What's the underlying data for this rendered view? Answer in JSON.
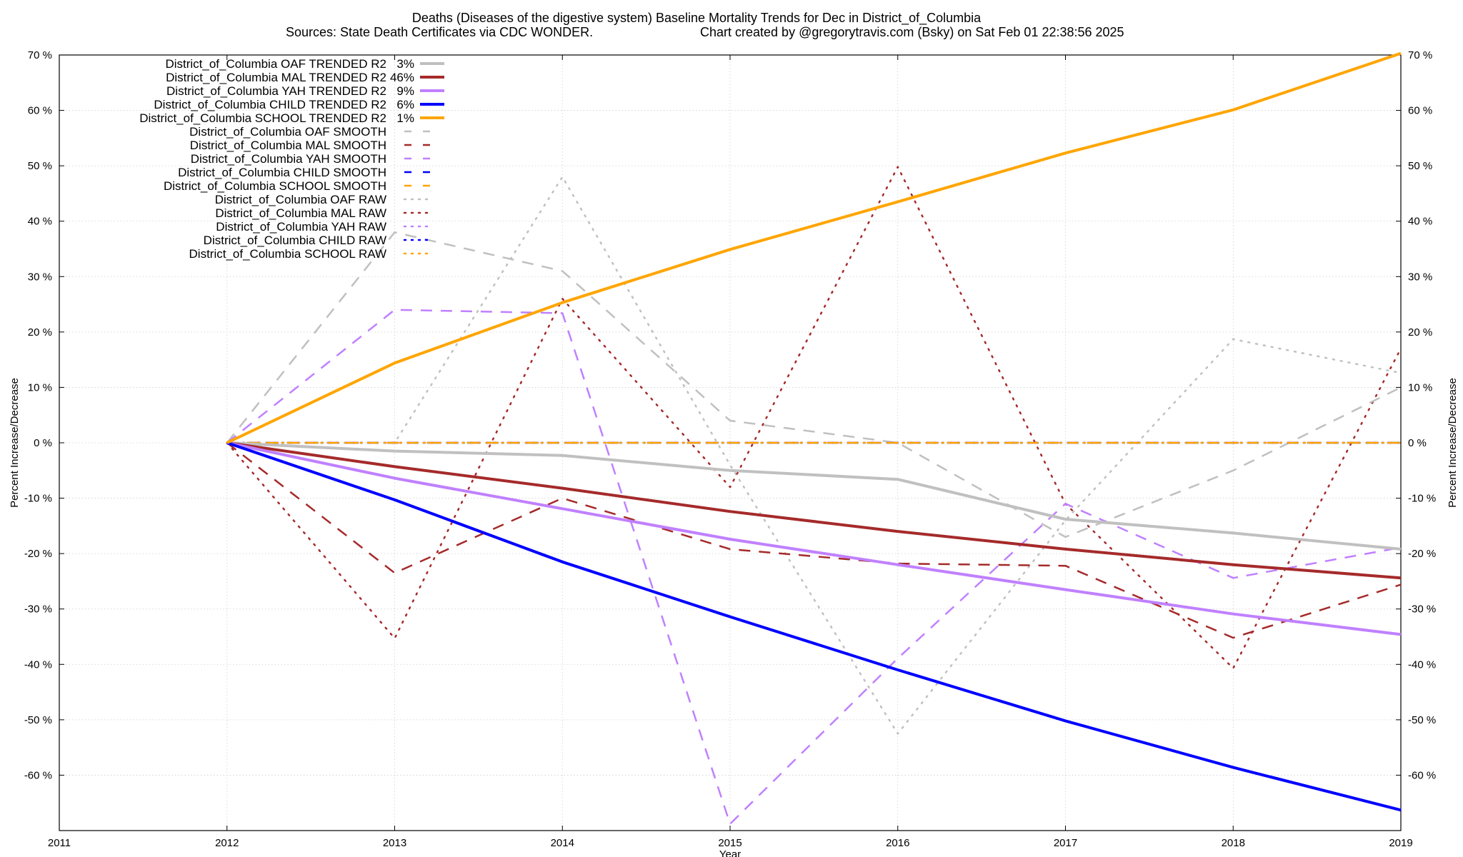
{
  "chart_data": {
    "type": "line",
    "title_line1": "Deaths (Diseases of the digestive system)  Baseline Mortality Trends for Dec in District_of_Columbia",
    "title_line2_left": "Sources: State Death Certificates via CDC WONDER.",
    "title_line2_right": "Chart created by @gregorytravis.com (Bsky) on Sat Feb 01 22:38:56 2025",
    "xlabel": "Year",
    "ylabel_left": "Percent Increase/Decrease",
    "ylabel_right": "Percent Increase/Decrease",
    "xlim": [
      2011,
      2019
    ],
    "ylim": [
      -70,
      70
    ],
    "grid": true,
    "legend_position": "top-left",
    "x_ticks": [
      "2011",
      "2012",
      "2013",
      "2014",
      "2015",
      "2016",
      "2017",
      "2018",
      "2019"
    ],
    "y_ticks": [
      {
        "value": 70,
        "label": "70 %"
      },
      {
        "value": 60,
        "label": "60 %"
      },
      {
        "value": 50,
        "label": "50 %"
      },
      {
        "value": 40,
        "label": "40 %"
      },
      {
        "value": 30,
        "label": "30 %"
      },
      {
        "value": 20,
        "label": "20 %"
      },
      {
        "value": 10,
        "label": "10 %"
      },
      {
        "value": 0,
        "label": "0 %"
      },
      {
        "value": -10,
        "label": "-10 %"
      },
      {
        "value": -20,
        "label": "-20 %"
      },
      {
        "value": -30,
        "label": "-30 %"
      },
      {
        "value": -40,
        "label": "-40 %"
      },
      {
        "value": -50,
        "label": "-50 %"
      },
      {
        "value": -60,
        "label": "-60 %"
      }
    ],
    "x": [
      2012,
      2013,
      2014,
      2015,
      2016,
      2017,
      2018,
      2019
    ],
    "series": [
      {
        "name": "District_of_Columbia OAF TRENDED R2",
        "r2": "3%",
        "style": "solid",
        "color": "#c0c0c0",
        "values": [
          0,
          -1.5,
          -2.3,
          -5,
          -6.6,
          -13.8,
          -16.3,
          -19.2
        ]
      },
      {
        "name": "District_of_Columbia MAL TRENDED R2",
        "r2": "46%",
        "style": "solid",
        "color": "#a52a2a",
        "values": [
          0,
          -4.3,
          -8.2,
          -12.4,
          -16,
          -19.2,
          -22,
          -24.4
        ]
      },
      {
        "name": "District_of_Columbia YAH TRENDED R2",
        "r2": "9%",
        "style": "solid",
        "color": "#c080ff",
        "values": [
          0,
          -6.4,
          -11.9,
          -17.4,
          -22,
          -26.5,
          -30.9,
          -34.6
        ]
      },
      {
        "name": "District_of_Columbia CHILD TRENDED R2",
        "r2": "6%",
        "style": "solid",
        "color": "#0000ff",
        "values": [
          0,
          -10.3,
          -21.5,
          -31.4,
          -41,
          -50.2,
          -58.6,
          -66.3
        ]
      },
      {
        "name": "District_of_Columbia SCHOOL TRENDED R2",
        "r2": "1%",
        "style": "solid",
        "color": "#ffa500",
        "values": [
          0,
          14.4,
          25.3,
          34.9,
          43.5,
          52.3,
          60.1,
          70.3
        ]
      },
      {
        "name": "District_of_Columbia OAF SMOOTH",
        "style": "dashed",
        "color": "#c0c0c0",
        "values": [
          0,
          38,
          31,
          4,
          0,
          -17,
          -5,
          10
        ]
      },
      {
        "name": "District_of_Columbia MAL SMOOTH",
        "style": "dashed",
        "color": "#a52a2a",
        "values": [
          0,
          -23.5,
          -10,
          -19.2,
          -21.8,
          -22.2,
          -35.2,
          -25.6
        ]
      },
      {
        "name": "District_of_Columbia YAH SMOOTH",
        "style": "dashed",
        "color": "#c080ff",
        "values": [
          0,
          24,
          23.4,
          -68.8,
          -38.9,
          -11,
          -24.4,
          -18.9
        ]
      },
      {
        "name": "District_of_Columbia CHILD SMOOTH",
        "style": "dashed",
        "color": "#0000ff",
        "values": [
          0,
          0,
          0,
          0,
          0,
          0,
          0,
          0
        ]
      },
      {
        "name": "District_of_Columbia SCHOOL SMOOTH",
        "style": "dashed",
        "color": "#ffa500",
        "values": [
          0,
          0,
          0,
          0,
          0,
          0,
          0,
          0
        ]
      },
      {
        "name": "District_of_Columbia OAF RAW",
        "style": "dotted",
        "color": "#c0c0c0",
        "values": [
          0,
          0,
          48,
          -4,
          -52.5,
          -14,
          18.7,
          12.6
        ]
      },
      {
        "name": "District_of_Columbia MAL RAW",
        "style": "dotted",
        "color": "#a52a2a",
        "values": [
          0,
          -35.3,
          26,
          -8,
          49.8,
          -11,
          -40.7,
          17
        ]
      },
      {
        "name": "District_of_Columbia YAH RAW",
        "style": "dotted",
        "color": "#c080ff",
        "values": [
          0,
          0,
          0,
          0,
          0,
          0,
          0,
          0
        ]
      },
      {
        "name": "District_of_Columbia CHILD RAW",
        "style": "dotted",
        "color": "#0000ff",
        "values": [
          0,
          0,
          0,
          0,
          0,
          0,
          0,
          0
        ]
      },
      {
        "name": "District_of_Columbia SCHOOL RAW",
        "style": "dotted",
        "color": "#ffa500",
        "values": [
          0,
          0,
          0,
          0,
          0,
          0,
          0,
          0
        ]
      }
    ]
  }
}
